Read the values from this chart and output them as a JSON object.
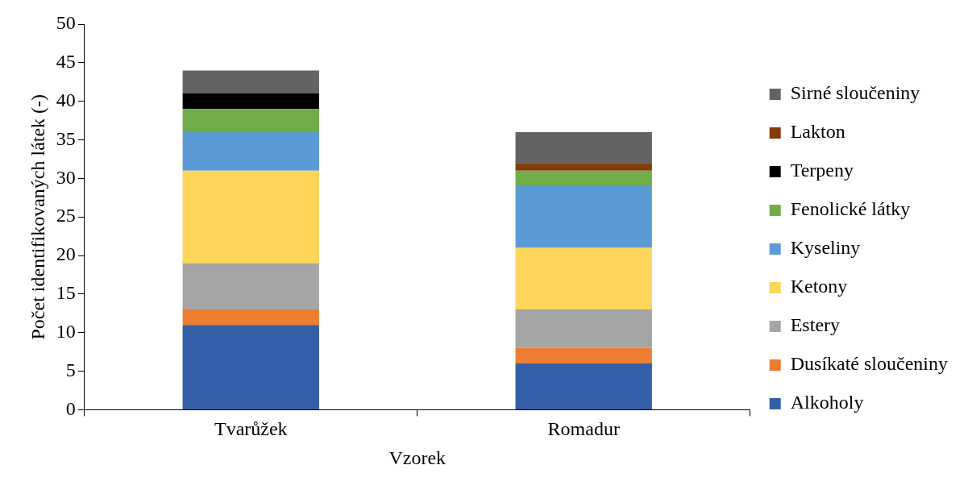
{
  "chart_data": {
    "type": "bar",
    "stacked": true,
    "xlabel": "Vzorek",
    "ylabel": "Počet identifikovaných látek (-)",
    "categories": [
      "Tvarůžek",
      "Romadur"
    ],
    "ylim": [
      0,
      50
    ],
    "yticks": [
      0,
      5,
      10,
      15,
      20,
      25,
      30,
      35,
      40,
      45,
      50
    ],
    "legend": "right",
    "series": [
      {
        "name": "Alkoholy",
        "color": "#335ea8",
        "values": [
          11,
          6
        ]
      },
      {
        "name": "Dusíkaté sloučeniny",
        "color": "#ed7d31",
        "values": [
          2,
          2
        ]
      },
      {
        "name": "Estery",
        "color": "#a5a5a5",
        "values": [
          6,
          5
        ]
      },
      {
        "name": "Ketony",
        "color": "#ffd55a",
        "values": [
          12,
          8
        ]
      },
      {
        "name": "Kyseliny",
        "color": "#5b9bd5",
        "values": [
          5,
          8
        ]
      },
      {
        "name": "Fenolické látky",
        "color": "#70ad47",
        "values": [
          3,
          2
        ]
      },
      {
        "name": "Terpeny",
        "color": "#000000",
        "values": [
          2,
          0
        ]
      },
      {
        "name": "Lakton",
        "color": "#843c0c",
        "values": [
          0,
          1
        ]
      },
      {
        "name": "Sirné sloučeniny",
        "color": "#636363",
        "values": [
          3,
          4
        ]
      }
    ]
  }
}
